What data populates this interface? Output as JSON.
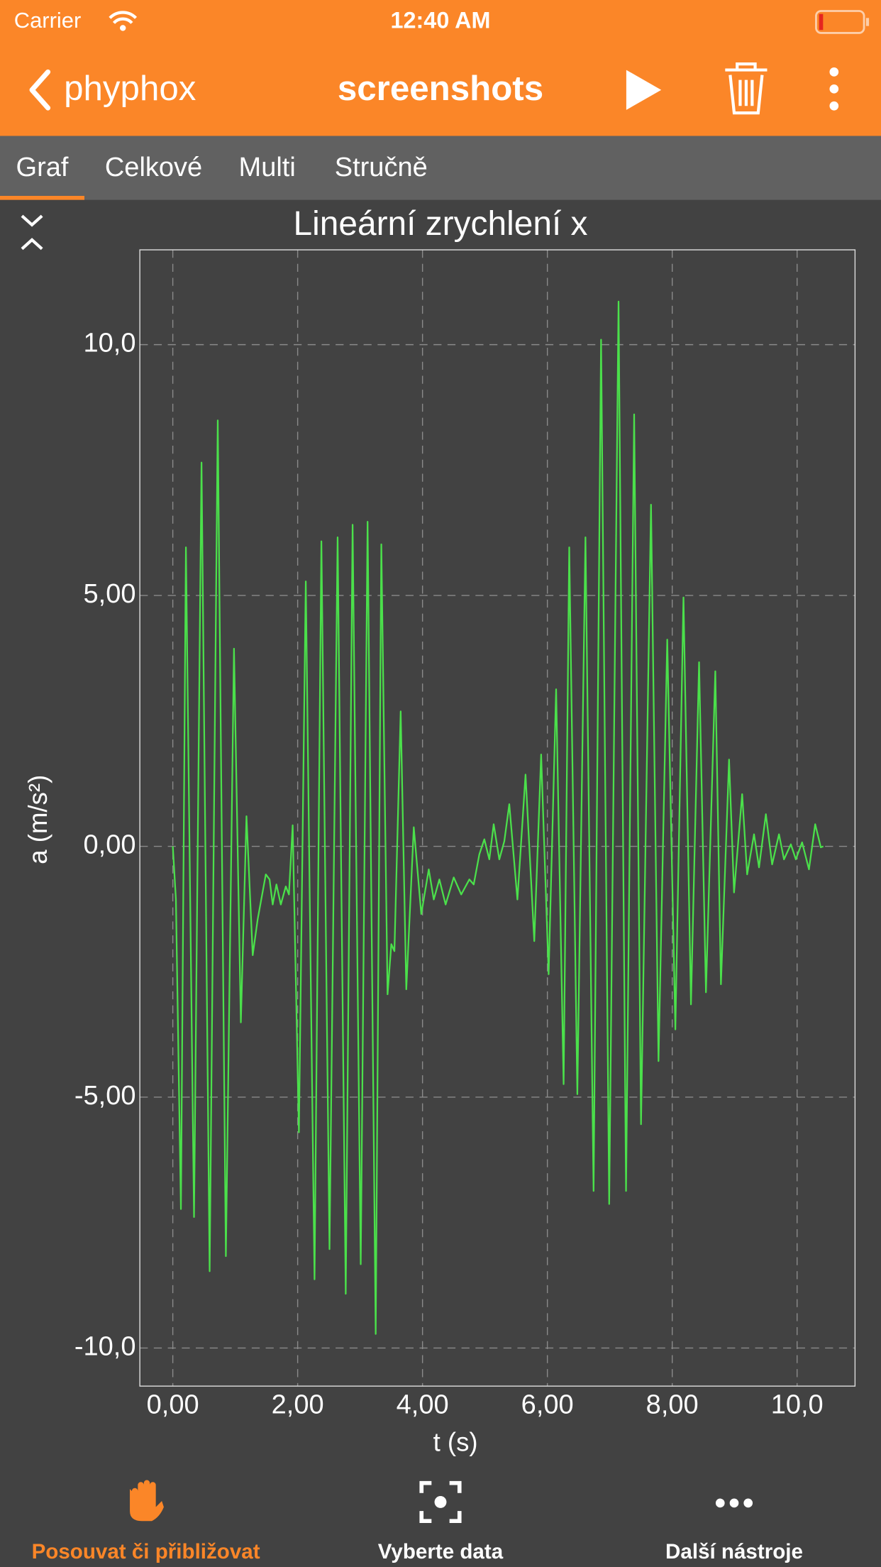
{
  "status_bar": {
    "carrier": "Carrier",
    "time": "12:40 AM"
  },
  "nav": {
    "back": "phyphox",
    "title": "screenshots"
  },
  "tabs": [
    "Graf",
    "Celkové",
    "Multi",
    "Stručně"
  ],
  "active_tab": 0,
  "chart_data": {
    "type": "line",
    "title": "Lineární zrychlení x",
    "x_label": "t (s)",
    "y_label": "a (m/s²)",
    "color": "#4be04b",
    "x": [
      0,
      0.05,
      0.13,
      0.21,
      0.34,
      0.46,
      0.59,
      0.72,
      0.85,
      0.98,
      1.09,
      1.18,
      1.28,
      1.36,
      1.49,
      1.55,
      1.6,
      1.66,
      1.73,
      1.81,
      1.86,
      1.92,
      2.02,
      2.13,
      2.27,
      2.38,
      2.51,
      2.64,
      2.77,
      2.88,
      3.01,
      3.12,
      3.25,
      3.34,
      3.44,
      3.5,
      3.55,
      3.65,
      3.74,
      3.86,
      3.98,
      4.1,
      4.18,
      4.27,
      4.37,
      4.5,
      4.62,
      4.75,
      4.82,
      4.91,
      4.99,
      5.07,
      5.14,
      5.23,
      5.31,
      5.39,
      5.52,
      5.65,
      5.79,
      5.9,
      6.02,
      6.14,
      6.26,
      6.35,
      6.48,
      6.61,
      6.74,
      6.86,
      6.99,
      7.14,
      7.26,
      7.39,
      7.5,
      7.66,
      7.78,
      7.92,
      8.05,
      8.18,
      8.3,
      8.43,
      8.54,
      8.69,
      8.78,
      8.91,
      8.99,
      9.12,
      9.2,
      9.31,
      9.39,
      9.5,
      9.6,
      9.71,
      9.79,
      9.9,
      9.98,
      10.08,
      10.19,
      10.29,
      10.38,
      10.42
    ],
    "values": [
      0,
      -1.06,
      -7.23,
      5.96,
      -7.39,
      7.65,
      -8.47,
      8.49,
      -8.17,
      3.94,
      -3.51,
      0.6,
      -2.17,
      -1.45,
      -0.56,
      -0.66,
      -1.16,
      -0.76,
      -1.16,
      -0.8,
      -0.96,
      0.42,
      -5.7,
      5.28,
      -8.63,
      6.08,
      -8.03,
      6.16,
      -8.92,
      6.41,
      -8.33,
      6.47,
      -9.72,
      6.02,
      -2.95,
      -1.95,
      -2.09,
      2.69,
      -2.85,
      0.38,
      -1.35,
      -0.46,
      -1.06,
      -0.66,
      -1.16,
      -0.62,
      -0.96,
      -0.66,
      -0.76,
      -0.16,
      0.14,
      -0.26,
      0.44,
      -0.26,
      0.1,
      0.84,
      -1.06,
      1.43,
      -1.89,
      1.83,
      -2.55,
      3.13,
      -4.74,
      5.96,
      -4.94,
      6.16,
      -6.87,
      10.1,
      -7.13,
      10.86,
      -6.87,
      8.61,
      -5.54,
      6.81,
      -4.28,
      4.12,
      -3.65,
      4.96,
      -3.15,
      3.67,
      -2.91,
      3.49,
      -2.75,
      1.73,
      -0.92,
      1.04,
      -0.56,
      0.24,
      -0.42,
      0.64,
      -0.36,
      0.24,
      -0.26,
      0.04,
      -0.26,
      0.08,
      -0.46,
      0.44,
      -0.02,
      0
    ],
    "xlim": [
      -0.528,
      10.928
    ],
    "ylim": [
      -10.76,
      11.89
    ],
    "xticks": [
      {
        "value": 0,
        "label": "0,00"
      },
      {
        "value": 2,
        "label": "2,00"
      },
      {
        "value": 4,
        "label": "4,00"
      },
      {
        "value": 6,
        "label": "6,00"
      },
      {
        "value": 8,
        "label": "8,00"
      },
      {
        "value": 10,
        "label": "10,0"
      }
    ],
    "yticks": [
      {
        "value": -10,
        "label": "-10,0"
      },
      {
        "value": -5,
        "label": "-5,00"
      },
      {
        "value": 0,
        "label": "0,00"
      },
      {
        "value": 5,
        "label": "5,00"
      },
      {
        "value": 10,
        "label": "10,0"
      }
    ],
    "grid": true
  },
  "toolbar": [
    "Posouvat či přibližovat",
    "Vyberte data",
    "Další nástroje"
  ],
  "active_tool": 0
}
